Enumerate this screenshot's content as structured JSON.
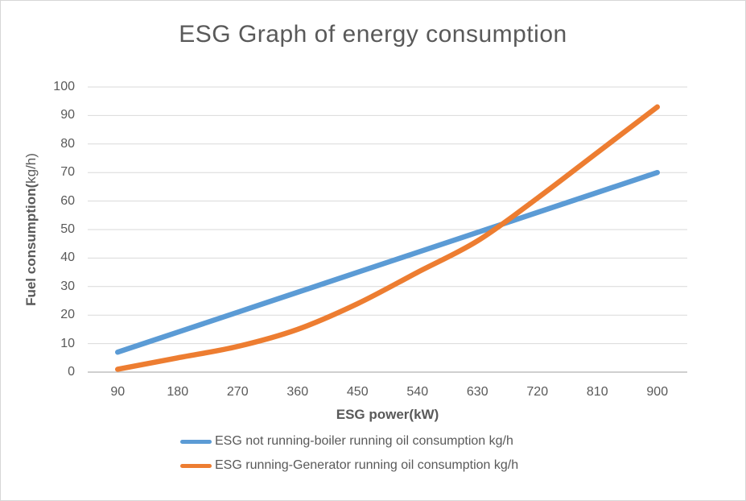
{
  "window": {
    "background": "#FFFFFF",
    "border_color": "#D7D7D7"
  },
  "chart_data": {
    "type": "line",
    "title": "ESG Graph of energy consumption",
    "xlabel": "ESG power(kW)",
    "ylabel": "Fuel consumption(kg/h)",
    "ylabel_parts": {
      "bold": "Fuel consumption(",
      "regular": "kg/h)"
    },
    "categories": [
      90,
      180,
      270,
      360,
      450,
      540,
      630,
      720,
      810,
      900
    ],
    "series": [
      {
        "name": "ESG not running-boiler running oil consumption kg/h",
        "color": "#5B9BD5",
        "values": [
          7,
          14,
          21,
          28,
          35,
          42,
          49,
          56,
          63,
          70
        ]
      },
      {
        "name": "ESG running-Generator running oil consumption kg/h",
        "color": "#ED7D31",
        "values": [
          1,
          5,
          9,
          15,
          24,
          35,
          46,
          61,
          77,
          93
        ]
      }
    ],
    "ylim": [
      0,
      100
    ],
    "yticks": [
      0,
      10,
      20,
      30,
      40,
      50,
      60,
      70,
      80,
      90,
      100
    ],
    "grid": "horizontal",
    "smoothed": true,
    "legend_position": "bottom",
    "text_color": "#595959",
    "gridline_color": "#D9D9D9",
    "axisline_color": "#BFBFBF"
  }
}
